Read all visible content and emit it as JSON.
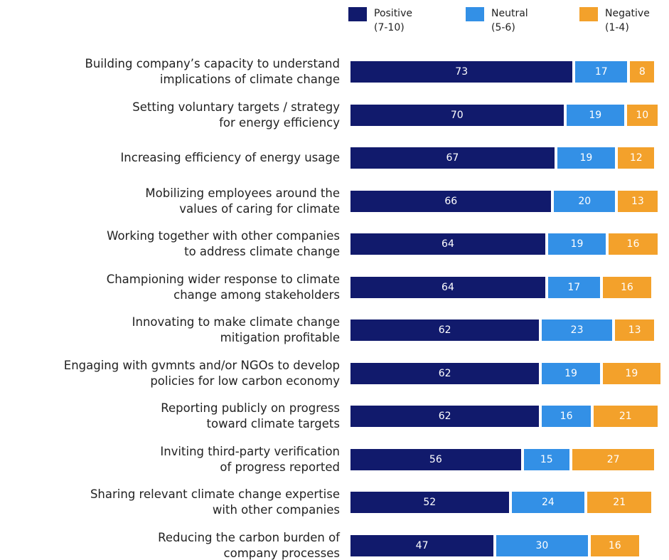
{
  "chart_data": {
    "type": "stacked_bar_horizontal",
    "categories": [
      "Building company’s capacity to understand\nimplications of climate change",
      "Setting voluntary targets / strategy\nfor energy efficiency",
      "Increasing efficiency of energy usage",
      "Mobilizing employees around the\nvalues of caring for climate",
      "Working together with other companies\nto address climate change",
      "Championing wider response to climate\nchange among stakeholders",
      "Innovating to make climate change\nmitigation profitable",
      "Engaging with gvmnts and/or NGOs to develop\npolicies for low carbon economy",
      "Reporting publicly on progress\ntoward climate targets",
      "Inviting third-party verification\nof progress reported",
      "Sharing relevant climate change expertise\nwith other companies",
      "Reducing the carbon burden of\ncompany processes"
    ],
    "series": [
      {
        "name": "Positive\n(7-10)",
        "color": "#111a6c",
        "values": [
          73,
          70,
          67,
          66,
          64,
          64,
          62,
          62,
          62,
          56,
          52,
          47
        ]
      },
      {
        "name": "Neutral\n(5-6)",
        "color": "#3390e6",
        "values": [
          17,
          19,
          19,
          20,
          19,
          17,
          23,
          19,
          16,
          15,
          24,
          30
        ]
      },
      {
        "name": "Negative\n(1-4)",
        "color": "#f3a12b",
        "values": [
          8,
          10,
          12,
          13,
          16,
          16,
          13,
          19,
          21,
          27,
          21,
          16
        ]
      }
    ]
  }
}
